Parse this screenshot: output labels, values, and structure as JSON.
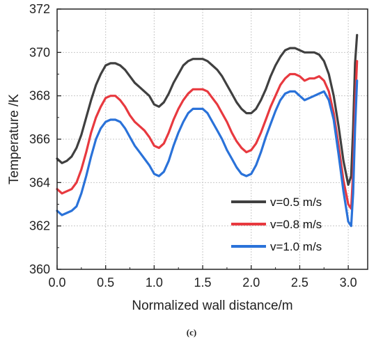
{
  "chart_data": {
    "type": "line",
    "title": "",
    "xlabel": "Normalized wall distance/m",
    "ylabel": "Temperature /K",
    "xlim": [
      0.0,
      3.2
    ],
    "ylim": [
      360,
      372
    ],
    "x_ticks": [
      "0.0",
      "0.5",
      "1.0",
      "1.5",
      "2.0",
      "2.5",
      "3.0"
    ],
    "y_ticks": [
      "360",
      "362",
      "364",
      "366",
      "368",
      "370",
      "372"
    ],
    "grid": true,
    "legend_position": "bottom-right",
    "caption": "(c)",
    "series": [
      {
        "name": "v=0.5 m/s",
        "color": "#404040",
        "x": [
          0.0,
          0.05,
          0.1,
          0.15,
          0.2,
          0.25,
          0.3,
          0.35,
          0.4,
          0.45,
          0.5,
          0.55,
          0.6,
          0.65,
          0.7,
          0.75,
          0.8,
          0.85,
          0.9,
          0.95,
          1.0,
          1.05,
          1.1,
          1.15,
          1.2,
          1.25,
          1.3,
          1.35,
          1.4,
          1.45,
          1.5,
          1.55,
          1.6,
          1.65,
          1.7,
          1.75,
          1.8,
          1.85,
          1.9,
          1.95,
          2.0,
          2.05,
          2.1,
          2.15,
          2.2,
          2.25,
          2.3,
          2.35,
          2.4,
          2.45,
          2.5,
          2.55,
          2.6,
          2.65,
          2.7,
          2.75,
          2.8,
          2.85,
          2.9,
          2.95,
          3.0,
          3.03,
          3.05,
          3.07,
          3.09
        ],
        "y": [
          365.1,
          364.9,
          365.0,
          365.2,
          365.6,
          366.2,
          367.0,
          367.8,
          368.5,
          369.0,
          369.4,
          369.5,
          369.5,
          369.4,
          369.2,
          368.9,
          368.6,
          368.4,
          368.2,
          368.0,
          367.6,
          367.5,
          367.7,
          368.1,
          368.6,
          369.0,
          369.4,
          369.6,
          369.7,
          369.7,
          369.7,
          369.6,
          369.4,
          369.2,
          368.9,
          368.5,
          368.1,
          367.7,
          367.4,
          367.2,
          367.2,
          367.4,
          367.8,
          368.3,
          368.9,
          369.4,
          369.8,
          370.1,
          370.2,
          370.2,
          370.1,
          370.0,
          370.0,
          370.0,
          369.9,
          369.6,
          369.0,
          368.0,
          366.6,
          365.0,
          363.9,
          364.3,
          366.5,
          369.5,
          370.8
        ]
      },
      {
        "name": "v=0.8 m/s",
        "color": "#e8393f",
        "x": [
          0.0,
          0.05,
          0.1,
          0.15,
          0.2,
          0.25,
          0.3,
          0.35,
          0.4,
          0.45,
          0.5,
          0.55,
          0.6,
          0.65,
          0.7,
          0.75,
          0.8,
          0.85,
          0.9,
          0.95,
          1.0,
          1.05,
          1.1,
          1.15,
          1.2,
          1.25,
          1.3,
          1.35,
          1.4,
          1.45,
          1.5,
          1.55,
          1.6,
          1.65,
          1.7,
          1.75,
          1.8,
          1.85,
          1.9,
          1.95,
          2.0,
          2.05,
          2.1,
          2.15,
          2.2,
          2.25,
          2.3,
          2.35,
          2.4,
          2.45,
          2.5,
          2.55,
          2.6,
          2.65,
          2.7,
          2.75,
          2.8,
          2.85,
          2.9,
          2.95,
          3.0,
          3.03,
          3.05,
          3.07,
          3.09
        ],
        "y": [
          363.7,
          363.5,
          363.6,
          363.7,
          364.0,
          364.6,
          365.4,
          366.3,
          367.0,
          367.5,
          367.9,
          368.0,
          368.0,
          367.8,
          367.5,
          367.1,
          366.8,
          366.6,
          366.4,
          366.1,
          365.7,
          365.6,
          365.8,
          366.3,
          366.9,
          367.4,
          367.8,
          368.1,
          368.3,
          368.3,
          368.3,
          368.2,
          367.9,
          367.6,
          367.2,
          366.8,
          366.3,
          365.9,
          365.6,
          365.4,
          365.5,
          365.8,
          366.3,
          366.9,
          367.5,
          368.0,
          368.5,
          368.8,
          369.0,
          369.0,
          368.9,
          368.7,
          368.8,
          368.8,
          368.9,
          368.7,
          368.2,
          367.2,
          365.7,
          364.1,
          363.0,
          362.8,
          364.5,
          367.5,
          369.6
        ]
      },
      {
        "name": "v=1.0 m/s",
        "color": "#2a72d9",
        "x": [
          0.0,
          0.05,
          0.1,
          0.15,
          0.2,
          0.25,
          0.3,
          0.35,
          0.4,
          0.45,
          0.5,
          0.55,
          0.6,
          0.65,
          0.7,
          0.75,
          0.8,
          0.85,
          0.9,
          0.95,
          1.0,
          1.05,
          1.1,
          1.15,
          1.2,
          1.25,
          1.3,
          1.35,
          1.4,
          1.45,
          1.5,
          1.55,
          1.6,
          1.65,
          1.7,
          1.75,
          1.8,
          1.85,
          1.9,
          1.95,
          2.0,
          2.05,
          2.1,
          2.15,
          2.2,
          2.25,
          2.3,
          2.35,
          2.4,
          2.45,
          2.5,
          2.55,
          2.6,
          2.65,
          2.7,
          2.75,
          2.8,
          2.85,
          2.9,
          2.95,
          3.0,
          3.03,
          3.05,
          3.07,
          3.09
        ],
        "y": [
          362.7,
          362.5,
          362.6,
          362.7,
          362.9,
          363.5,
          364.3,
          365.2,
          366.0,
          366.5,
          366.8,
          366.9,
          366.9,
          366.8,
          366.5,
          366.1,
          365.7,
          365.4,
          365.1,
          364.8,
          364.4,
          364.3,
          364.5,
          365.0,
          365.7,
          366.3,
          366.8,
          367.2,
          367.4,
          367.4,
          367.4,
          367.2,
          366.8,
          366.4,
          366.0,
          365.5,
          365.1,
          364.7,
          364.4,
          364.3,
          364.4,
          364.8,
          365.4,
          366.1,
          366.7,
          367.3,
          367.8,
          368.1,
          368.2,
          368.2,
          368.0,
          367.8,
          367.9,
          368.0,
          368.1,
          368.2,
          367.8,
          366.9,
          365.3,
          363.6,
          362.2,
          362.0,
          363.5,
          366.5,
          368.7
        ]
      }
    ]
  }
}
